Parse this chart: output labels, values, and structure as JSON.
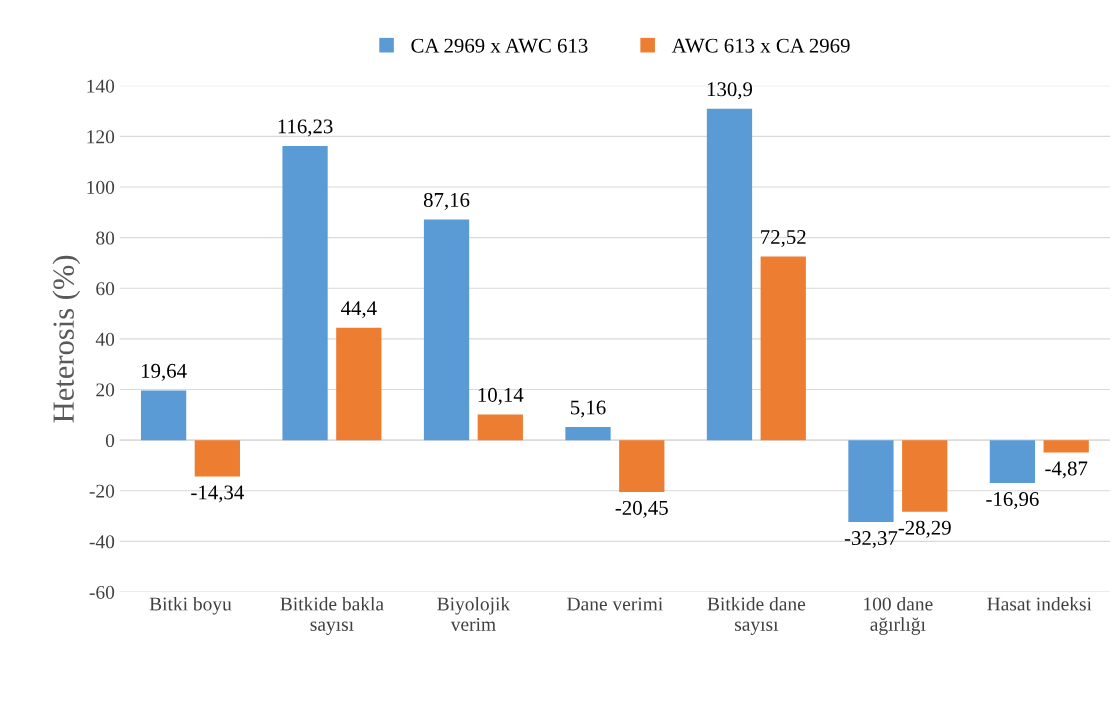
{
  "chart_data": {
    "type": "bar",
    "ylabel": "Heterosis (%)",
    "categories": [
      "Bitki boyu",
      "Bitkide bakla\nsayısı",
      "Biyolojik\nverim",
      "Dane verimi",
      "Bitkide dane\nsayısı",
      "100 dane\nağırlığı",
      "Hasat indeksi"
    ],
    "series": [
      {
        "name": "CA 2969 x AWC 613",
        "color": "#5b9bd5",
        "values": [
          19.64,
          116.23,
          87.16,
          5.16,
          130.9,
          -32.37,
          -16.96
        ],
        "value_labels": [
          "19,64",
          "116,23",
          "87,16",
          "5,16",
          "130,9",
          "-32,37",
          "-16,96"
        ]
      },
      {
        "name": "AWC 613 x CA 2969",
        "color": "#ed7d31",
        "values": [
          -14.34,
          44.4,
          10.14,
          -20.45,
          72.52,
          -28.29,
          -4.87
        ],
        "value_labels": [
          "-14,34",
          "44,4",
          "10,14",
          "-20,45",
          "72,52",
          "-28,29",
          "-4,87"
        ]
      }
    ],
    "ylim": [
      -60,
      140
    ],
    "yticks": [
      -60,
      -40,
      -20,
      0,
      20,
      40,
      60,
      80,
      100,
      120,
      140
    ],
    "grid": "y",
    "legend": "top"
  }
}
